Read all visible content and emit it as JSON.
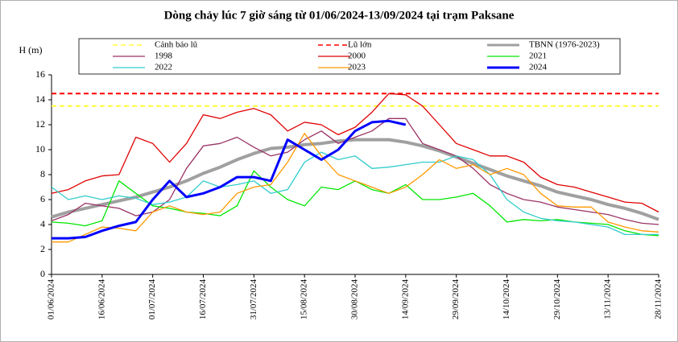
{
  "chart_data": {
    "type": "line",
    "title": "Dòng chảy lúc 7 giờ sáng từ 01/06/2024-13/09/2024 tại trạm Paksane",
    "y_label": "H (m)",
    "x": [
      "01/06/2024",
      "06/06/2024",
      "11/06/2024",
      "16/06/2024",
      "21/06/2024",
      "26/06/2024",
      "01/07/2024",
      "06/07/2024",
      "11/07/2024",
      "16/07/2024",
      "21/07/2024",
      "26/07/2024",
      "31/07/2024",
      "05/08/2024",
      "10/08/2024",
      "15/08/2024",
      "20/08/2024",
      "25/08/2024",
      "30/08/2024",
      "04/09/2024",
      "09/09/2024",
      "14/09/2024",
      "19/09/2024",
      "24/09/2024",
      "29/09/2024",
      "04/10/2024",
      "09/10/2024",
      "14/10/2024",
      "19/10/2024",
      "24/10/2024",
      "29/10/2024",
      "03/11/2024",
      "08/11/2024",
      "13/11/2024",
      "18/11/2024",
      "23/11/2024",
      "28/11/2024"
    ],
    "xlim": [
      "01/06/2024",
      "28/11/2024"
    ],
    "xticks": [
      "01/06/2024",
      "16/06/2024",
      "01/07/2024",
      "16/07/2024",
      "31/07/2024",
      "15/08/2024",
      "30/08/2024",
      "14/09/2024",
      "29/09/2024",
      "14/10/2024",
      "29/10/2024",
      "13/11/2024",
      "28/11/2024"
    ],
    "ylim": [
      0,
      16
    ],
    "yticks": [
      0,
      2,
      4,
      6,
      8,
      10,
      12,
      14,
      16
    ],
    "series": [
      {
        "name": "Cảnh báo lũ",
        "color": "#ffff33",
        "dash": true,
        "value": 13.5
      },
      {
        "name": "Lũ lớn",
        "color": "#ff0000",
        "dash": true,
        "value": 14.5
      },
      {
        "name": "TBNN (1976-2023)",
        "color": "#a0a0a0",
        "width": 4,
        "values": [
          4.6,
          5.0,
          5.3,
          5.6,
          5.9,
          6.2,
          6.6,
          7.0,
          7.5,
          8.1,
          8.6,
          9.2,
          9.7,
          10.1,
          10.2,
          10.4,
          10.5,
          10.7,
          10.8,
          10.8,
          10.8,
          10.6,
          10.3,
          9.9,
          9.4,
          8.9,
          8.4,
          7.9,
          7.5,
          7.1,
          6.6,
          6.3,
          6.0,
          5.6,
          5.3,
          4.9,
          4.4
        ]
      },
      {
        "name": "1998",
        "color": "#993366",
        "width": 1.3,
        "values": [
          4.3,
          4.8,
          5.7,
          5.5,
          5.3,
          4.7,
          5.0,
          6.0,
          8.5,
          10.3,
          10.5,
          11.0,
          10.2,
          9.5,
          9.8,
          10.8,
          11.5,
          10.5,
          11.0,
          11.5,
          12.5,
          12.5,
          10.5,
          10.0,
          9.5,
          8.5,
          7.2,
          6.5,
          6.0,
          5.8,
          5.4,
          5.2,
          5.0,
          4.8,
          4.4,
          4.1,
          4.0
        ]
      },
      {
        "name": "2000",
        "color": "#e00000",
        "width": 1.3,
        "values": [
          6.5,
          6.8,
          7.5,
          7.9,
          8.0,
          11.0,
          10.5,
          9.0,
          10.5,
          12.8,
          12.5,
          13.0,
          13.3,
          12.8,
          11.5,
          12.2,
          12.0,
          11.2,
          11.8,
          13.0,
          14.5,
          14.4,
          13.5,
          12.0,
          10.5,
          10.0,
          9.5,
          9.5,
          9.0,
          7.8,
          7.2,
          7.0,
          6.6,
          6.2,
          5.8,
          5.7,
          5.0
        ]
      },
      {
        "name": "2021",
        "color": "#00e600",
        "width": 1.3,
        "values": [
          4.2,
          4.1,
          3.9,
          4.3,
          7.5,
          6.5,
          5.5,
          5.3,
          5.0,
          4.9,
          4.7,
          5.5,
          8.3,
          7.0,
          6.0,
          5.5,
          7.0,
          6.8,
          7.5,
          6.8,
          6.5,
          7.2,
          6.0,
          6.0,
          6.2,
          6.5,
          5.5,
          4.2,
          4.4,
          4.3,
          4.4,
          4.2,
          4.1,
          4.0,
          3.5,
          3.2,
          3.1
        ]
      },
      {
        "name": "2022",
        "color": "#33cccc",
        "width": 1.3,
        "values": [
          7.0,
          6.0,
          6.3,
          6.0,
          6.3,
          6.1,
          5.6,
          5.8,
          6.2,
          7.5,
          7.0,
          7.2,
          7.5,
          6.5,
          6.8,
          9.0,
          9.8,
          9.2,
          9.5,
          8.5,
          8.6,
          8.8,
          9.0,
          9.0,
          9.5,
          9.2,
          8.0,
          6.0,
          5.0,
          4.5,
          4.3,
          4.2,
          4.0,
          3.8,
          3.2,
          3.2,
          3.2
        ]
      },
      {
        "name": "2023",
        "color": "#ff9900",
        "width": 1.3,
        "values": [
          2.6,
          2.6,
          3.2,
          3.8,
          3.7,
          3.5,
          5.0,
          5.5,
          5.0,
          4.8,
          5.0,
          6.5,
          7.0,
          7.2,
          9.0,
          11.3,
          9.5,
          8.0,
          7.5,
          7.0,
          6.5,
          7.0,
          8.0,
          9.2,
          8.5,
          8.8,
          8.0,
          8.5,
          8.0,
          6.5,
          5.5,
          5.4,
          5.4,
          4.2,
          3.8,
          3.5,
          3.4
        ]
      },
      {
        "name": "2024",
        "color": "#0000ff",
        "width": 3,
        "values": [
          2.9,
          2.9,
          3.0,
          3.5,
          3.9,
          4.2,
          6.0,
          7.5,
          6.2,
          6.5,
          7.0,
          7.8,
          7.8,
          7.5,
          10.8,
          10.0,
          9.2,
          10.0,
          11.5,
          12.2,
          12.3,
          12.0,
          null,
          null,
          null,
          null,
          null,
          null,
          null,
          null,
          null,
          null,
          null,
          null,
          null,
          null,
          null
        ]
      }
    ]
  }
}
